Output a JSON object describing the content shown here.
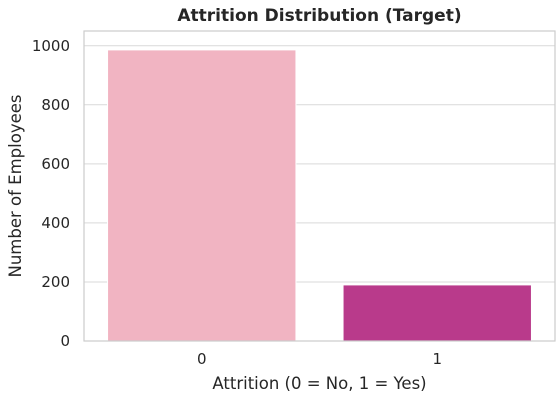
{
  "chart_data": {
    "type": "bar",
    "title": "Attrition Distribution (Target)",
    "xlabel": "Attrition (0 = No, 1 = Yes)",
    "ylabel": "Number of Employees",
    "categories": [
      "0",
      "1"
    ],
    "values": [
      986,
      190
    ],
    "colors": [
      "#f1b4c2",
      "#b93a8b"
    ],
    "ylim": [
      0,
      1050
    ],
    "yticks": [
      0,
      200,
      400,
      600,
      800,
      1000
    ],
    "grid": "horizontal",
    "background": "#ffffff",
    "grid_color": "#d9d9d9"
  }
}
